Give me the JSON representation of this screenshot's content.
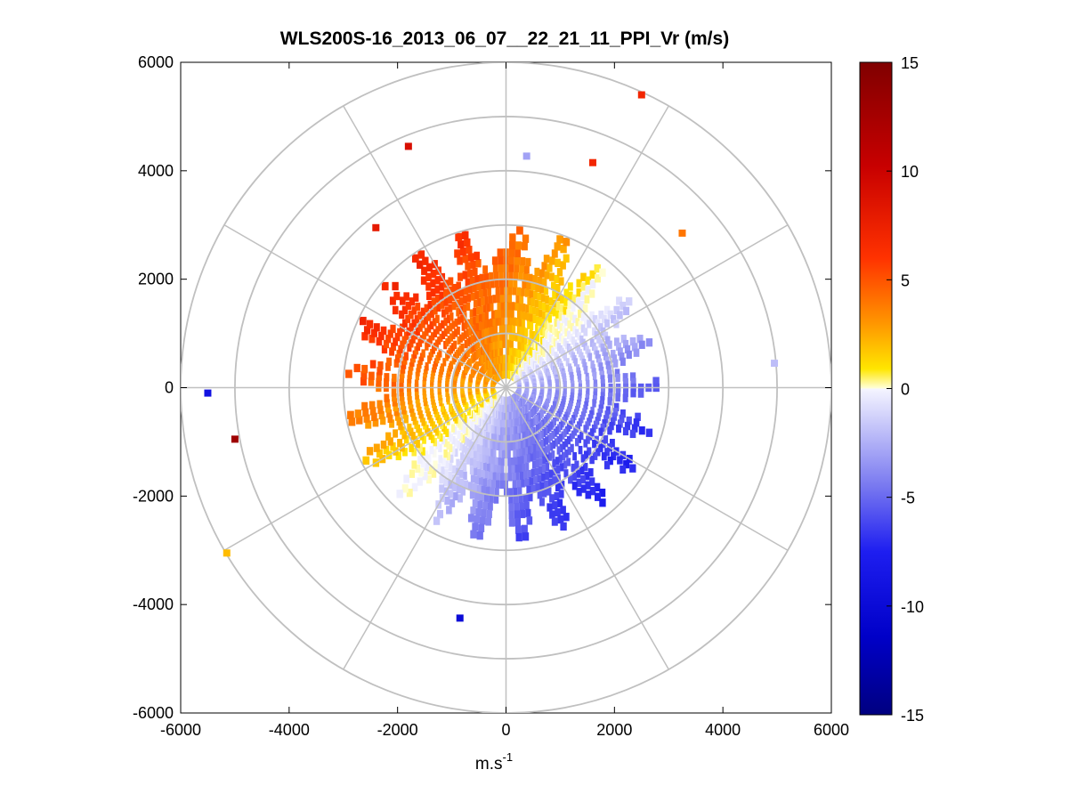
{
  "chart_data": {
    "type": "heatmap",
    "subtype": "polar-ppi-scan",
    "title": "WLS200S-16_2013_06_07__22_21_11_PPI_Vr (m/s)",
    "xlabel_base": "m.s",
    "xlabel_exponent": "-1",
    "ylabel": "",
    "xlim": [
      -6000,
      6000
    ],
    "ylim": [
      -6000,
      6000
    ],
    "xticks": [
      -6000,
      -4000,
      -2000,
      0,
      2000,
      4000,
      6000
    ],
    "yticks": [
      -6000,
      -4000,
      -2000,
      0,
      2000,
      4000,
      6000
    ],
    "xtick_labels": [
      "-6000",
      "-4000",
      "-2000",
      "0",
      "2000",
      "4000",
      "6000"
    ],
    "ytick_labels": [
      "6000",
      "4000",
      "2000",
      "0",
      "-2000",
      "-4000",
      "-6000"
    ],
    "polar_grid": {
      "range_rings_m": [
        1000,
        2000,
        3000,
        4000,
        5000,
        6000
      ],
      "radial_spokes_deg": [
        0,
        30,
        60,
        90,
        120,
        150,
        180,
        210,
        240,
        270,
        300,
        330
      ],
      "color": "#c0c0c0"
    },
    "colorbar": {
      "range": [
        -15,
        15
      ],
      "ticks": [
        15,
        10,
        5,
        0,
        -5,
        -10,
        -15
      ],
      "tick_labels": [
        "15",
        "10",
        "5",
        "0",
        "-5",
        "-10",
        "-15"
      ],
      "colormap": "blue-white-yellow-red"
    },
    "field_description": {
      "positive_sector_azimuth_deg": [
        270,
        10
      ],
      "negative_sector_azimuth_deg": [
        100,
        210
      ],
      "dense_range_m": [
        300,
        2900
      ],
      "max_positive_ms": 7,
      "max_negative_ms": -8
    },
    "outliers": [
      {
        "x": -5500,
        "y": -100,
        "v": -9
      },
      {
        "x": -5000,
        "y": -950,
        "v": 13
      },
      {
        "x": -5150,
        "y": -3050,
        "v": 2
      },
      {
        "x": -850,
        "y": -4250,
        "v": -10
      },
      {
        "x": 2500,
        "y": 5400,
        "v": 7
      },
      {
        "x": 4950,
        "y": 450,
        "v": -2
      },
      {
        "x": -1800,
        "y": 4450,
        "v": 9
      },
      {
        "x": -2400,
        "y": 2950,
        "v": 8
      },
      {
        "x": 380,
        "y": 4270,
        "v": -3
      },
      {
        "x": 1600,
        "y": 4150,
        "v": 7
      },
      {
        "x": 3250,
        "y": 2850,
        "v": 4
      }
    ]
  }
}
